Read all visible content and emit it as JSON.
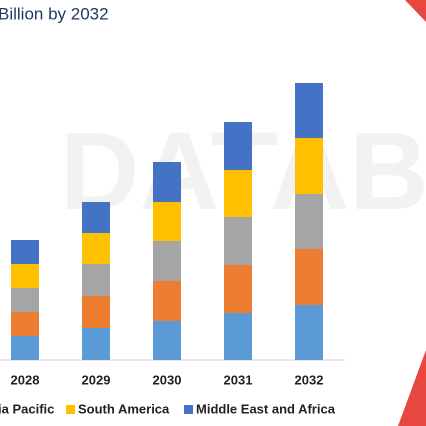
{
  "chart_data": {
    "type": "stacked-bar",
    "title": "Billion by 2032",
    "categories": [
      "2028",
      "2029",
      "2030",
      "2031",
      "2032"
    ],
    "ylim": [
      0,
      360
    ],
    "series": [
      {
        "color": "#5b9bd5",
        "values": [
          24,
          32,
          39,
          47,
          55
        ]
      },
      {
        "color": "#ed7d31",
        "values": [
          24,
          32,
          40,
          48,
          56
        ]
      },
      {
        "name": "ia Pacific",
        "color": "#a5a5a5",
        "values": [
          24,
          32,
          40,
          48,
          55
        ]
      },
      {
        "name": "South America",
        "color": "#ffc000",
        "values": [
          24,
          31,
          39,
          47,
          56
        ]
      },
      {
        "name": "Middle East and Africa",
        "color": "#4472c4",
        "values": [
          24,
          31,
          40,
          48,
          55
        ]
      }
    ]
  }
}
